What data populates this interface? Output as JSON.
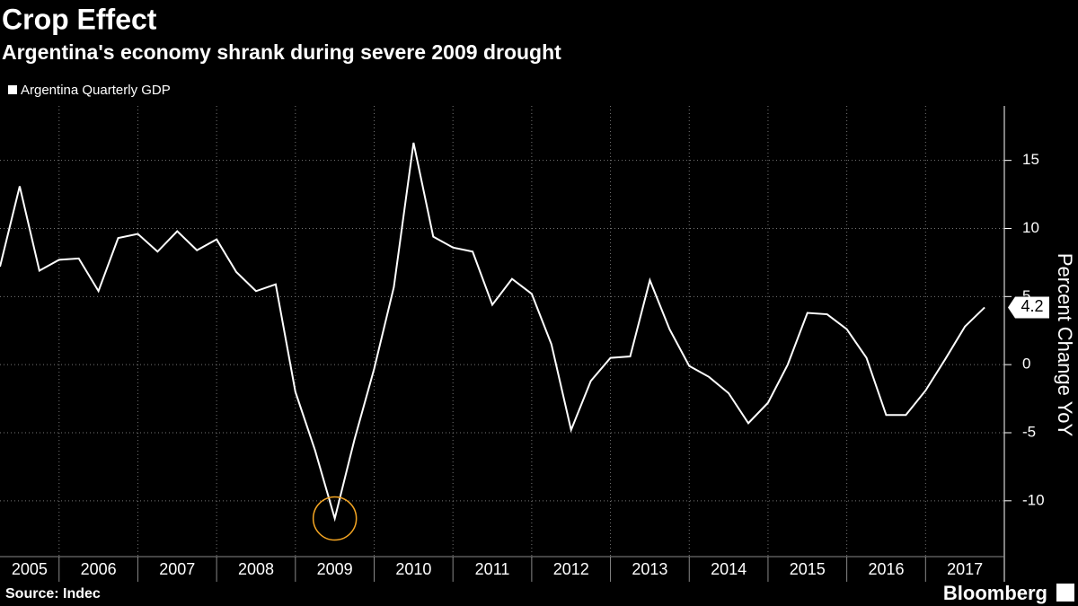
{
  "chart_data": {
    "type": "line",
    "title": "Crop Effect",
    "subtitle": "Argentina's economy shrank during severe 2009 drought",
    "source": "Source: Indec",
    "brand": "Bloomberg",
    "y_label": "Percent Change YoY",
    "series": [
      {
        "name": "Argentina Quarterly GDP",
        "color": "#ffffff",
        "values": [
          7.2,
          13.1,
          6.9,
          7.7,
          7.8,
          5.4,
          9.3,
          9.6,
          8.3,
          9.8,
          8.4,
          9.2,
          6.8,
          5.4,
          5.9,
          -2.0,
          -6.3,
          -11.3,
          -5.5,
          -0.3,
          5.7,
          16.3,
          9.4,
          8.6,
          8.3,
          4.4,
          6.3,
          5.2,
          1.5,
          -4.8,
          -1.2,
          0.5,
          0.6,
          6.2,
          2.6,
          -0.1,
          -0.9,
          -2.1,
          -4.3,
          -2.8,
          0.0,
          3.8,
          3.7,
          2.6,
          0.5,
          -3.7,
          -3.7,
          -1.9,
          0.4,
          2.8,
          4.2
        ]
      }
    ],
    "x": [
      2005.25,
      2005.5,
      2005.75,
      2006,
      2006.25,
      2006.5,
      2006.75,
      2007,
      2007.25,
      2007.5,
      2007.75,
      2008,
      2008.25,
      2008.5,
      2008.75,
      2009,
      2009.25,
      2009.5,
      2009.75,
      2010,
      2010.25,
      2010.5,
      2010.75,
      2011,
      2011.25,
      2011.5,
      2011.75,
      2012,
      2012.25,
      2012.5,
      2012.75,
      2013,
      2013.25,
      2013.5,
      2013.75,
      2014,
      2014.25,
      2014.5,
      2014.75,
      2015,
      2015.25,
      2015.5,
      2015.75,
      2016,
      2016.25,
      2016.5,
      2016.75,
      2017,
      2017.25,
      2017.5,
      2017.75
    ],
    "xlim": [
      2005.25,
      2018
    ],
    "xticks": [
      2005,
      2006,
      2007,
      2008,
      2009,
      2010,
      2011,
      2012,
      2013,
      2014,
      2015,
      2016,
      2017
    ],
    "ylim": [
      -14.1,
      19
    ],
    "yticks": [
      -10,
      -5,
      0,
      5,
      10,
      15
    ],
    "grid": true,
    "highlight": {
      "index": 17,
      "color": "#f5a623"
    }
  }
}
